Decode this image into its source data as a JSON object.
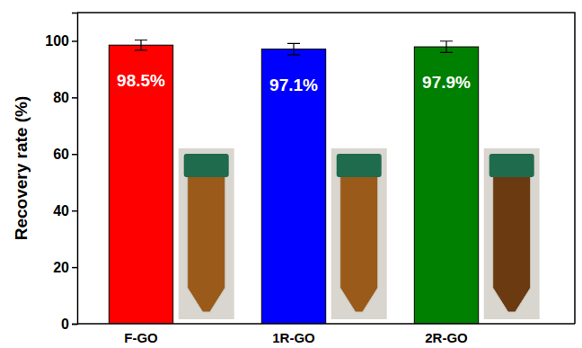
{
  "chart_data": {
    "type": "bar",
    "y_label": "Recovery rate (%)",
    "categories": [
      "F-GO",
      "1R-GO",
      "2R-GO"
    ],
    "values": [
      98.5,
      97.1,
      97.9
    ],
    "value_labels": [
      "98.5%",
      "97.1%",
      "97.9%"
    ],
    "errors": [
      1.8,
      2.0,
      2.0
    ],
    "colors": [
      "#ff0000",
      "#0000ff",
      "#008000"
    ],
    "ylim": [
      0,
      110
    ],
    "yticks": [
      0,
      20,
      40,
      60,
      80,
      100
    ],
    "data_labels": true,
    "grid": false
  }
}
